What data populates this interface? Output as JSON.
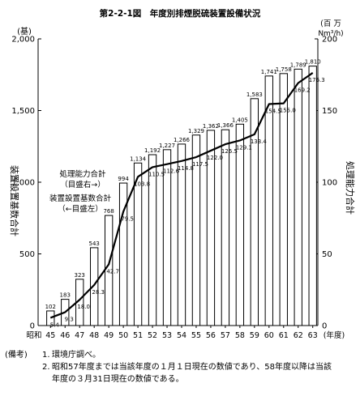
{
  "chart_data": {
    "type": "bar",
    "title": "第2-2-1図　年度別排煙脱硫装置設備状況",
    "left_axis": {
      "unit": "(基)",
      "label": "装置設置基数合計",
      "ylim": [
        0,
        2000
      ],
      "ticks": [
        "0",
        "500",
        "1,000",
        "1,500",
        "2,000"
      ],
      "tick_values": [
        0,
        500,
        1000,
        1500,
        2000
      ]
    },
    "right_axis": {
      "unit_line1": "(百 万",
      "unit_line2": "Nm³/h)",
      "label": "処理能力合計",
      "ylim": [
        0,
        200
      ],
      "ticks": [
        "0",
        "50",
        "100",
        "150",
        "200"
      ],
      "tick_values": [
        0,
        50,
        100,
        150,
        200
      ]
    },
    "x_prefix": "昭和",
    "x_suffix": "(年度)",
    "categories": [
      "45",
      "46",
      "47",
      "48",
      "49",
      "50",
      "51",
      "52",
      "53",
      "54",
      "55",
      "56",
      "57",
      "58",
      "59",
      "60",
      "61",
      "62",
      "63"
    ],
    "series": [
      {
        "name": "装置設置基数合計",
        "type": "bar",
        "axis": "left",
        "values": [
          102,
          183,
          323,
          543,
          768,
          994,
          1134,
          1192,
          1227,
          1266,
          1329,
          1362,
          1366,
          1405,
          1583,
          1741,
          1758,
          1789,
          1810
        ],
        "labels": [
          "102",
          "183",
          "323",
          "543",
          "768",
          "994",
          "1,134",
          "1,192",
          "1,227",
          "1,266",
          "1,329",
          "1,362",
          "1,366",
          "1,405",
          "1,583",
          "1,741",
          "1,758",
          "1,789",
          "1,810"
        ]
      },
      {
        "name": "処理能力合計",
        "type": "line",
        "axis": "right",
        "values": [
          5.4,
          9.3,
          18.0,
          28.3,
          42.7,
          79.5,
          103.8,
          110.5,
          112.6,
          114.8,
          117.5,
          122.0,
          126.5,
          129.1,
          133.4,
          154.5,
          155.0,
          169.2,
          176.3
        ],
        "labels": [
          "5.4",
          "9.3",
          "18.0",
          "28.3",
          "42.7",
          "79.5",
          "103.8",
          "110.5",
          "112.6",
          "114.8",
          "117.5",
          "122.0",
          "126.5",
          "129.1",
          "133.4",
          "154.5",
          "155.0",
          "169.2",
          "176.3"
        ]
      }
    ],
    "annotations": [
      {
        "text1": "処理能力合計",
        "text2": "（目盛右→）"
      },
      {
        "text1": "装置設置基数合計",
        "text2": "（←目盛左）"
      }
    ]
  },
  "notes": {
    "heading": "(備考)",
    "items": [
      {
        "num": "1.",
        "text": "環境庁調べ。"
      },
      {
        "num": "2.",
        "text": "昭和57年度までは当該年度の１月１日現在の数値であり、58年度以降は当該",
        "cont": "年度の３月31日現在の数値である。"
      }
    ]
  }
}
